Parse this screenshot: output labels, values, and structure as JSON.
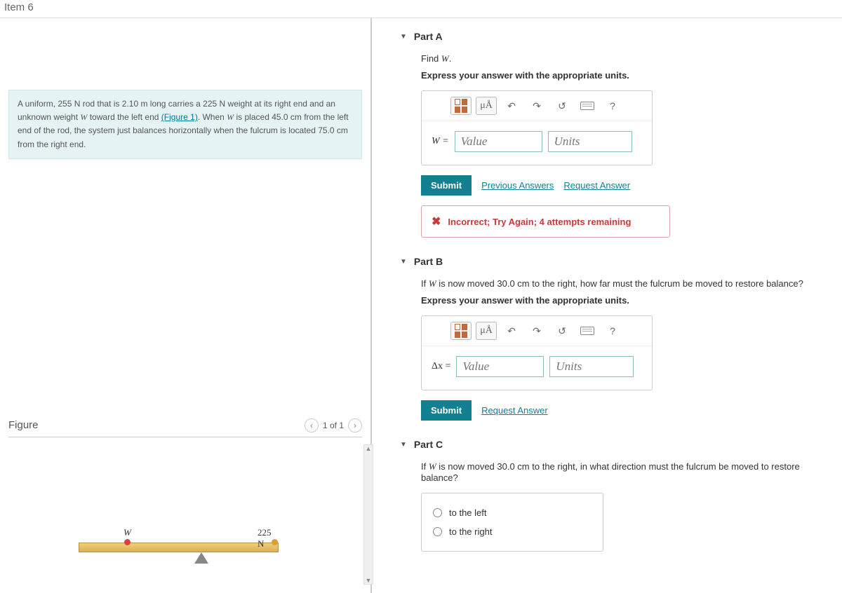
{
  "header": {
    "title": "Item 6"
  },
  "problem": {
    "p1a": "A uniform, ",
    "rod_n": "255 N",
    "p1b": " rod that is ",
    "rod_len": "2.10 m",
    "p1c": " long carries a ",
    "weight_n": "225 N",
    "p1d": " weight at its right end and an unknown weight ",
    "wvar": "W",
    "p1e": " toward the left end ",
    "fig_link": "(Figure 1)",
    "p1f": ". When ",
    "p1g": " is placed ",
    "dist_left": "45.0 cm",
    "p1h": " from the left end of the rod, the system just balances horizontally when the fulcrum is located ",
    "dist_right": "75.0 cm",
    "p1i": " from the right end."
  },
  "figure": {
    "label": "Figure",
    "count": "1 of 1",
    "w_label": "W",
    "r_label": "225 N",
    "colors": {
      "rod_top": "#f0ce7a",
      "rod_bottom": "#d9b054",
      "w_dot": "#d9443a",
      "r_dot": "#d99e3a",
      "fulcrum": "#888888"
    }
  },
  "partA": {
    "title": "Part A",
    "find_pre": "Find ",
    "find_var": "W",
    "find_post": ".",
    "instr": "Express your answer with the appropriate units.",
    "var_label": "W =",
    "value_ph": "Value",
    "units_ph": "Units",
    "submit": "Submit",
    "prev": "Previous Answers",
    "req": "Request Answer",
    "fb_text": "Incorrect; Try Again; 4 attempts remaining",
    "toolbar": {
      "micro": "μÅ",
      "help": "?"
    }
  },
  "partB": {
    "title": "Part B",
    "q_pre": "If ",
    "q_var": "W",
    "q_mid": " is now moved ",
    "q_dist": "30.0 cm",
    "q_post": " to the right, how far must the fulcrum be moved to restore balance?",
    "instr": "Express your answer with the appropriate units.",
    "var_label": "Δx =",
    "value_ph": "Value",
    "units_ph": "Units",
    "submit": "Submit",
    "req": "Request Answer",
    "toolbar": {
      "micro": "μÅ",
      "help": "?"
    }
  },
  "partC": {
    "title": "Part C",
    "q_pre": "If ",
    "q_var": "W",
    "q_mid": " is now moved ",
    "q_dist": "30.0 cm",
    "q_post": " to the right, in what direction must the fulcrum be moved to restore balance?",
    "opt1": "to the left",
    "opt2": "to the right"
  }
}
